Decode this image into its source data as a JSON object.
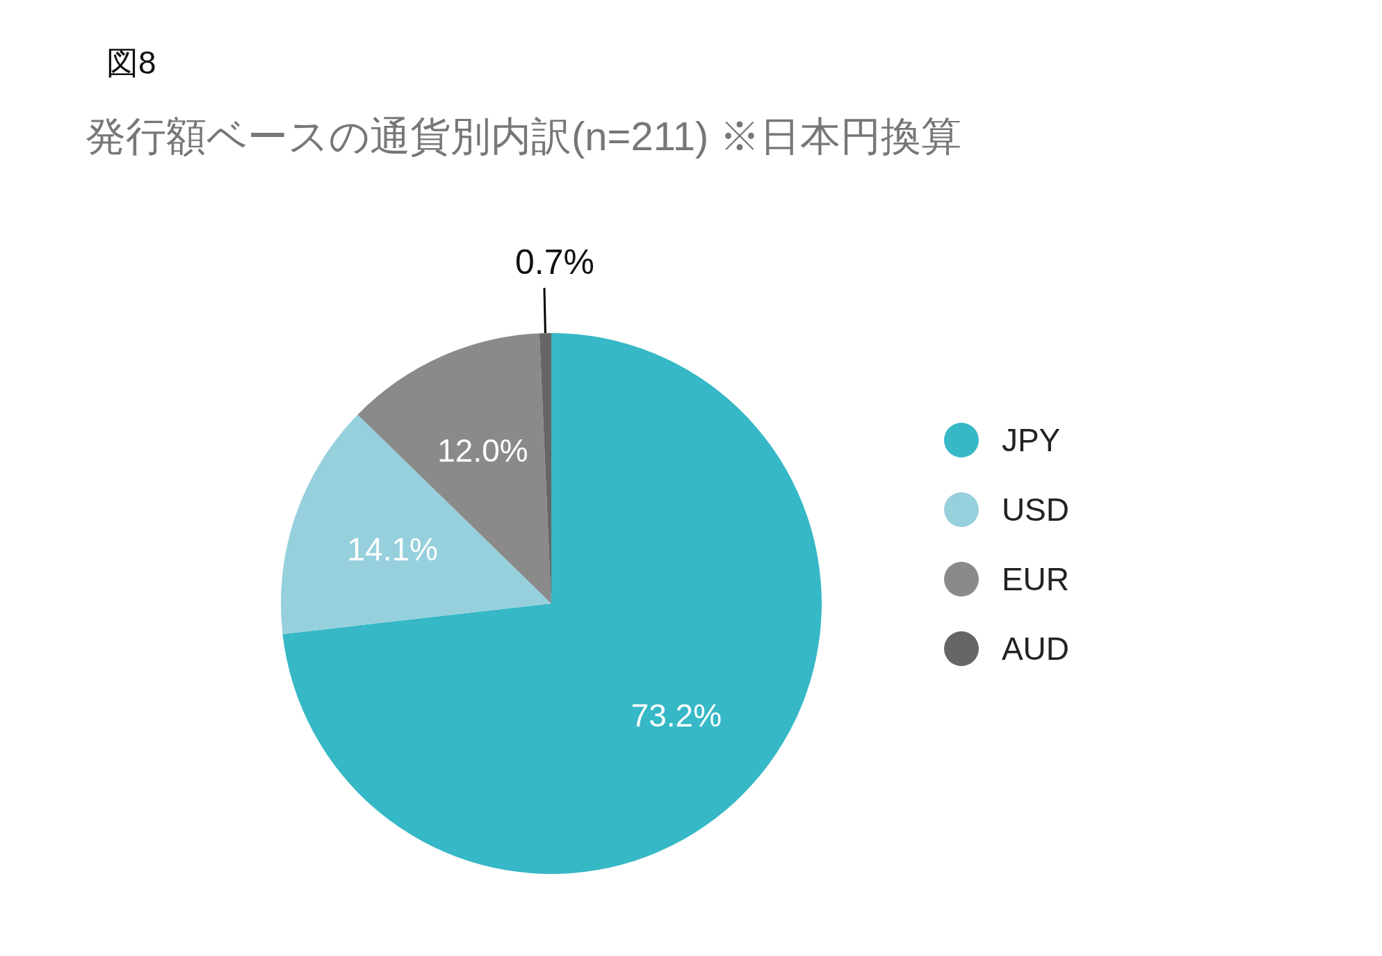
{
  "chart_data": {
    "type": "pie",
    "title": "発行額ベースの通貨別内訳(n=211) ※日本円換算",
    "annotations": [
      "図8"
    ],
    "categories": [
      "JPY",
      "USD",
      "EUR",
      "AUD"
    ],
    "values": [
      73.2,
      14.1,
      12.0,
      0.7
    ],
    "colors": [
      "#36b8c6",
      "#96d0dc",
      "#8a8a8a",
      "#666666"
    ],
    "value_labels": [
      "73.2%",
      "14.1%",
      "12.0%",
      "0.7%"
    ],
    "legend": "right"
  }
}
